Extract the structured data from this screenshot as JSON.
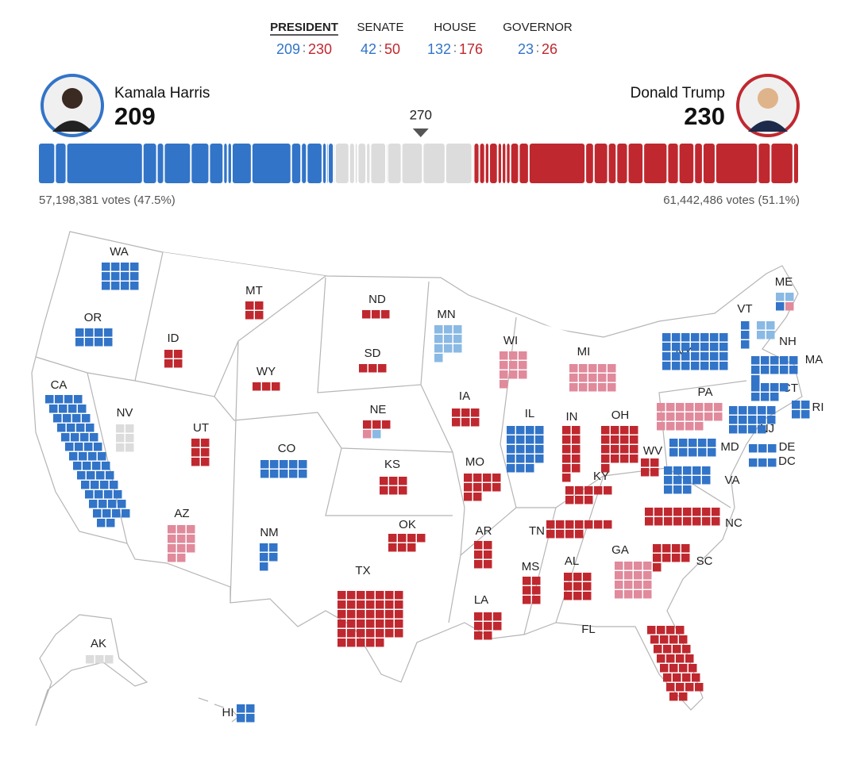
{
  "races": [
    {
      "name": "PRESIDENT",
      "dem": 209,
      "rep": 230,
      "active": true
    },
    {
      "name": "SENATE",
      "dem": 42,
      "rep": 50,
      "active": false
    },
    {
      "name": "HOUSE",
      "dem": 132,
      "rep": 176,
      "active": false
    },
    {
      "name": "GOVERNOR",
      "dem": 23,
      "rep": 26,
      "active": false
    }
  ],
  "separator": ":",
  "candidates": [
    {
      "name": "Kamala Harris",
      "electoral_votes": 209,
      "popular_vote": "57,198,381 votes (47.5%)",
      "color": "#3274c8"
    },
    {
      "name": "Donald Trump",
      "electoral_votes": 230,
      "popular_vote": "61,442,486 votes (51.1%)",
      "color": "#c0282f"
    }
  ],
  "majority": 270,
  "colors": {
    "dem": "#3274c8",
    "rep": "#c0282f",
    "lean_dem": "#8ab9e4",
    "lean_rep": "#e08a9c",
    "pending": "#dcdcdc"
  },
  "states": [
    {
      "code": "WA",
      "parts": [
        {
          "status": "dem",
          "ev": 12
        }
      ]
    },
    {
      "code": "OR",
      "parts": [
        {
          "status": "dem",
          "ev": 8
        }
      ]
    },
    {
      "code": "CA",
      "parts": [
        {
          "status": "dem",
          "ev": 54
        }
      ]
    },
    {
      "code": "NV",
      "parts": [
        {
          "status": "pending",
          "ev": 6
        }
      ]
    },
    {
      "code": "ID",
      "parts": [
        {
          "status": "rep",
          "ev": 4
        }
      ]
    },
    {
      "code": "MT",
      "parts": [
        {
          "status": "rep",
          "ev": 4
        }
      ]
    },
    {
      "code": "WY",
      "parts": [
        {
          "status": "rep",
          "ev": 3
        }
      ]
    },
    {
      "code": "UT",
      "parts": [
        {
          "status": "rep",
          "ev": 6
        }
      ]
    },
    {
      "code": "CO",
      "parts": [
        {
          "status": "dem",
          "ev": 10
        }
      ]
    },
    {
      "code": "AZ",
      "parts": [
        {
          "status": "lean_rep",
          "ev": 11
        }
      ]
    },
    {
      "code": "NM",
      "parts": [
        {
          "status": "dem",
          "ev": 5
        }
      ]
    },
    {
      "code": "ND",
      "parts": [
        {
          "status": "rep",
          "ev": 3
        }
      ]
    },
    {
      "code": "SD",
      "parts": [
        {
          "status": "rep",
          "ev": 3
        }
      ]
    },
    {
      "code": "NE",
      "parts": [
        {
          "status": "rep",
          "ev": 3
        },
        {
          "status": "lean_rep",
          "ev": 1
        },
        {
          "status": "lean_dem",
          "ev": 1
        }
      ]
    },
    {
      "code": "KS",
      "parts": [
        {
          "status": "rep",
          "ev": 6
        }
      ]
    },
    {
      "code": "OK",
      "parts": [
        {
          "status": "rep",
          "ev": 7
        }
      ]
    },
    {
      "code": "TX",
      "parts": [
        {
          "status": "rep",
          "ev": 40
        }
      ]
    },
    {
      "code": "MN",
      "parts": [
        {
          "status": "lean_dem",
          "ev": 10
        }
      ]
    },
    {
      "code": "IA",
      "parts": [
        {
          "status": "rep",
          "ev": 6
        }
      ]
    },
    {
      "code": "MO",
      "parts": [
        {
          "status": "rep",
          "ev": 10
        }
      ]
    },
    {
      "code": "AR",
      "parts": [
        {
          "status": "rep",
          "ev": 6
        }
      ]
    },
    {
      "code": "LA",
      "parts": [
        {
          "status": "rep",
          "ev": 8
        }
      ]
    },
    {
      "code": "WI",
      "parts": [
        {
          "status": "lean_rep",
          "ev": 10
        }
      ]
    },
    {
      "code": "MI",
      "parts": [
        {
          "status": "lean_rep",
          "ev": 15
        }
      ]
    },
    {
      "code": "IL",
      "parts": [
        {
          "status": "dem",
          "ev": 19
        }
      ]
    },
    {
      "code": "IN",
      "parts": [
        {
          "status": "rep",
          "ev": 11
        }
      ]
    },
    {
      "code": "OH",
      "parts": [
        {
          "status": "rep",
          "ev": 17
        }
      ]
    },
    {
      "code": "KY",
      "parts": [
        {
          "status": "rep",
          "ev": 8
        }
      ]
    },
    {
      "code": "TN",
      "parts": [
        {
          "status": "rep",
          "ev": 11
        }
      ]
    },
    {
      "code": "MS",
      "parts": [
        {
          "status": "rep",
          "ev": 6
        }
      ]
    },
    {
      "code": "AL",
      "parts": [
        {
          "status": "rep",
          "ev": 9
        }
      ]
    },
    {
      "code": "GA",
      "parts": [
        {
          "status": "lean_rep",
          "ev": 16
        }
      ]
    },
    {
      "code": "FL",
      "parts": [
        {
          "status": "rep",
          "ev": 30
        }
      ]
    },
    {
      "code": "SC",
      "parts": [
        {
          "status": "rep",
          "ev": 9
        }
      ]
    },
    {
      "code": "NC",
      "parts": [
        {
          "status": "rep",
          "ev": 16
        }
      ]
    },
    {
      "code": "VA",
      "parts": [
        {
          "status": "dem",
          "ev": 13
        }
      ]
    },
    {
      "code": "WV",
      "parts": [
        {
          "status": "rep",
          "ev": 4
        }
      ]
    },
    {
      "code": "PA",
      "parts": [
        {
          "status": "lean_rep",
          "ev": 19
        }
      ]
    },
    {
      "code": "MD",
      "parts": [
        {
          "status": "dem",
          "ev": 10
        }
      ]
    },
    {
      "code": "DE",
      "parts": [
        {
          "status": "dem",
          "ev": 3
        }
      ]
    },
    {
      "code": "DC",
      "parts": [
        {
          "status": "dem",
          "ev": 3
        }
      ]
    },
    {
      "code": "NJ",
      "parts": [
        {
          "status": "dem",
          "ev": 14
        }
      ]
    },
    {
      "code": "NY",
      "parts": [
        {
          "status": "dem",
          "ev": 28
        }
      ]
    },
    {
      "code": "CT",
      "parts": [
        {
          "status": "dem",
          "ev": 7
        }
      ]
    },
    {
      "code": "RI",
      "parts": [
        {
          "status": "dem",
          "ev": 4
        }
      ]
    },
    {
      "code": "MA",
      "parts": [
        {
          "status": "dem",
          "ev": 11
        }
      ]
    },
    {
      "code": "VT",
      "parts": [
        {
          "status": "dem",
          "ev": 3
        }
      ]
    },
    {
      "code": "NH",
      "parts": [
        {
          "status": "lean_dem",
          "ev": 4
        }
      ]
    },
    {
      "code": "ME",
      "parts": [
        {
          "status": "lean_dem",
          "ev": 2
        },
        {
          "status": "dem",
          "ev": 1
        },
        {
          "status": "lean_rep",
          "ev": 1
        }
      ]
    },
    {
      "code": "AK",
      "parts": [
        {
          "status": "pending",
          "ev": 3
        }
      ]
    },
    {
      "code": "HI",
      "parts": [
        {
          "status": "dem",
          "ev": 4
        }
      ]
    }
  ]
}
